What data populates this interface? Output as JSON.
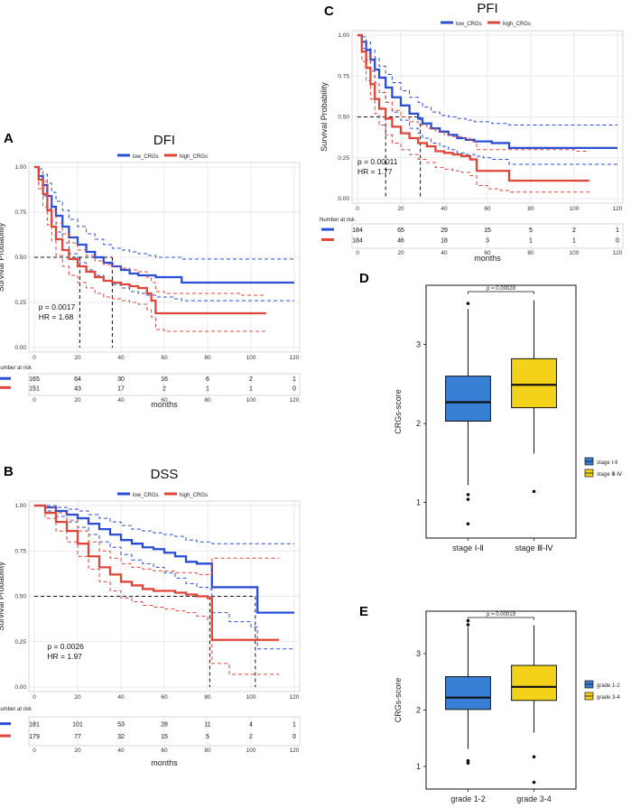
{
  "panels": {
    "A": {
      "label": "A",
      "chart_data": {
        "type": "line",
        "title": "DFI",
        "legend": [
          "low_CRGs",
          "high_CRGs"
        ],
        "ylabel": "Survival Probability",
        "xlabel": "months",
        "xticks": [
          "0",
          "20",
          "40",
          "60",
          "80",
          "100",
          "120"
        ],
        "yticks": [
          "0.00",
          "0.25",
          "0.50",
          "0.75",
          "1.00"
        ],
        "xlim": [
          0,
          120
        ],
        "ylim": [
          0,
          1
        ],
        "series": [
          {
            "name": "low_CRGs",
            "color": "#2a4fd6",
            "x": [
              0,
              2,
              4,
              6,
              8,
              10,
              13,
              16,
              20,
              24,
              28,
              32,
              36,
              40,
              44,
              48,
              52,
              56,
              60,
              64,
              68,
              120
            ],
            "y": [
              1,
              0.95,
              0.9,
              0.84,
              0.78,
              0.73,
              0.67,
              0.61,
              0.57,
              0.53,
              0.5,
              0.47,
              0.45,
              0.43,
              0.41,
              0.4,
              0.4,
              0.39,
              0.39,
              0.39,
              0.36,
              0.36
            ],
            "upper": [
              1,
              0.99,
              0.96,
              0.91,
              0.86,
              0.81,
              0.76,
              0.71,
              0.67,
              0.63,
              0.6,
              0.57,
              0.55,
              0.54,
              0.53,
              0.52,
              0.51,
              0.5,
              0.5,
              0.5,
              0.49,
              0.49
            ],
            "lower": [
              1,
              0.9,
              0.84,
              0.77,
              0.7,
              0.64,
              0.58,
              0.52,
              0.47,
              0.43,
              0.4,
              0.37,
              0.35,
              0.33,
              0.31,
              0.3,
              0.29,
              0.28,
              0.28,
              0.27,
              0.26,
              0.26
            ]
          },
          {
            "name": "high_CRGs",
            "color": "#e0453a",
            "x": [
              0,
              2,
              4,
              6,
              8,
              10,
              13,
              16,
              20,
              24,
              28,
              32,
              36,
              40,
              44,
              48,
              52,
              54,
              56,
              60,
              70,
              80,
              95,
              107
            ],
            "y": [
              1,
              0.93,
              0.85,
              0.76,
              0.67,
              0.6,
              0.54,
              0.49,
              0.45,
              0.42,
              0.39,
              0.37,
              0.36,
              0.35,
              0.34,
              0.33,
              0.3,
              0.26,
              0.19,
              0.19,
              0.19,
              0.19,
              0.19,
              0.19
            ],
            "upper": [
              1,
              0.98,
              0.92,
              0.84,
              0.76,
              0.69,
              0.63,
              0.58,
              0.54,
              0.51,
              0.48,
              0.46,
              0.45,
              0.44,
              0.43,
              0.42,
              0.39,
              0.36,
              0.31,
              0.3,
              0.3,
              0.3,
              0.29,
              0.29
            ],
            "lower": [
              1,
              0.88,
              0.78,
              0.68,
              0.59,
              0.51,
              0.45,
              0.4,
              0.36,
              0.33,
              0.3,
              0.28,
              0.27,
              0.26,
              0.25,
              0.24,
              0.21,
              0.17,
              0.1,
              0.09,
              0.09,
              0.09,
              0.09,
              0.09
            ]
          }
        ],
        "median_lines": [
          21,
          36
        ],
        "annotations": [
          "p = 0.0017",
          "HR = 1.68"
        ],
        "risk_table": {
          "title": "Number at risk",
          "low_CRGs": [
            "165",
            "64",
            "30",
            "16",
            "6",
            "2",
            "1"
          ],
          "high_CRGs": [
            "151",
            "43",
            "17",
            "2",
            "1",
            "1",
            "0"
          ]
        }
      }
    },
    "B": {
      "label": "B",
      "chart_data": {
        "type": "line",
        "title": "DSS",
        "legend": [
          "low_CRGs",
          "high_CRGs"
        ],
        "ylabel": "Survival Probability",
        "xlabel": "months",
        "xticks": [
          "0",
          "20",
          "40",
          "60",
          "80",
          "100",
          "120"
        ],
        "yticks": [
          "0.00",
          "0.25",
          "0.50",
          "0.75",
          "1.00"
        ],
        "xlim": [
          0,
          120
        ],
        "ylim": [
          0,
          1
        ],
        "series": [
          {
            "name": "low_CRGs",
            "color": "#2a4fd6",
            "x": [
              0,
              5,
              10,
              15,
              20,
              25,
              30,
              35,
              40,
              45,
              50,
              55,
              60,
              65,
              70,
              75,
              80,
              82,
              90,
              100,
              103,
              120
            ],
            "y": [
              1,
              0.99,
              0.97,
              0.95,
              0.93,
              0.9,
              0.87,
              0.84,
              0.81,
              0.79,
              0.77,
              0.76,
              0.74,
              0.72,
              0.69,
              0.68,
              0.68,
              0.55,
              0.55,
              0.55,
              0.41,
              0.41
            ],
            "upper": [
              1,
              1,
              0.99,
              0.98,
              0.97,
              0.95,
              0.93,
              0.91,
              0.89,
              0.87,
              0.86,
              0.85,
              0.84,
              0.83,
              0.81,
              0.8,
              0.8,
              0.79,
              0.79,
              0.79,
              0.79,
              0.79
            ],
            "lower": [
              1,
              0.97,
              0.94,
              0.91,
              0.88,
              0.84,
              0.8,
              0.77,
              0.73,
              0.7,
              0.68,
              0.66,
              0.63,
              0.6,
              0.57,
              0.55,
              0.54,
              0.41,
              0.36,
              0.33,
              0.21,
              0.21
            ]
          },
          {
            "name": "high_CRGs",
            "color": "#e0453a",
            "x": [
              0,
              5,
              10,
              15,
              20,
              25,
              30,
              35,
              40,
              45,
              50,
              55,
              60,
              65,
              70,
              75,
              80,
              82,
              90,
              105,
              113
            ],
            "y": [
              1,
              0.96,
              0.91,
              0.86,
              0.79,
              0.72,
              0.66,
              0.62,
              0.58,
              0.56,
              0.54,
              0.53,
              0.53,
              0.52,
              0.51,
              0.5,
              0.49,
              0.26,
              0.26,
              0.26,
              0.26
            ],
            "upper": [
              1,
              0.99,
              0.96,
              0.92,
              0.86,
              0.8,
              0.75,
              0.71,
              0.68,
              0.66,
              0.65,
              0.64,
              0.64,
              0.63,
              0.63,
              0.62,
              0.62,
              0.71,
              0.71,
              0.71,
              0.71
            ],
            "lower": [
              1,
              0.93,
              0.86,
              0.8,
              0.72,
              0.65,
              0.58,
              0.53,
              0.49,
              0.47,
              0.45,
              0.44,
              0.43,
              0.42,
              0.41,
              0.39,
              0.37,
              0.13,
              0.07,
              0.07,
              0.07
            ]
          }
        ],
        "median_lines": [
          81,
          102
        ],
        "annotations": [
          "p = 0.0026",
          "HR = 1.97"
        ],
        "risk_table": {
          "title": "Number at risk",
          "low_CRGs": [
            "181",
            "101",
            "53",
            "28",
            "11",
            "4",
            "1"
          ],
          "high_CRGs": [
            "179",
            "77",
            "32",
            "15",
            "5",
            "2",
            "0"
          ]
        }
      }
    },
    "C": {
      "label": "C",
      "chart_data": {
        "type": "line",
        "title": "PFI",
        "legend": [
          "low_CRGs",
          "high_CRGs"
        ],
        "ylabel": "Survival Probability",
        "xlabel": "months",
        "xticks": [
          "0",
          "20",
          "40",
          "60",
          "80",
          "100",
          "120"
        ],
        "yticks": [
          "0.00",
          "0.25",
          "0.50",
          "0.75",
          "1.00"
        ],
        "xlim": [
          0,
          120
        ],
        "ylim": [
          0,
          1
        ],
        "series": [
          {
            "name": "low_CRGs",
            "color": "#2a4fd6",
            "x": [
              0,
              2,
              4,
              6,
              8,
              10,
              13,
              16,
              20,
              24,
              28,
              30,
              34,
              38,
              42,
              46,
              50,
              54,
              58,
              62,
              66,
              70,
              120
            ],
            "y": [
              1,
              0.96,
              0.91,
              0.85,
              0.79,
              0.74,
              0.68,
              0.62,
              0.57,
              0.52,
              0.49,
              0.46,
              0.43,
              0.41,
              0.39,
              0.37,
              0.36,
              0.35,
              0.35,
              0.34,
              0.34,
              0.31,
              0.31
            ],
            "upper": [
              1,
              0.99,
              0.96,
              0.91,
              0.86,
              0.81,
              0.76,
              0.71,
              0.66,
              0.62,
              0.59,
              0.56,
              0.53,
              0.51,
              0.5,
              0.49,
              0.48,
              0.47,
              0.47,
              0.46,
              0.46,
              0.45,
              0.45
            ],
            "lower": [
              1,
              0.92,
              0.85,
              0.78,
              0.71,
              0.65,
              0.59,
              0.53,
              0.48,
              0.43,
              0.4,
              0.37,
              0.34,
              0.32,
              0.3,
              0.28,
              0.27,
              0.26,
              0.25,
              0.24,
              0.24,
              0.21,
              0.21
            ]
          },
          {
            "name": "high_CRGs",
            "color": "#e0453a",
            "x": [
              0,
              2,
              4,
              6,
              8,
              10,
              13,
              16,
              20,
              24,
              28,
              32,
              36,
              40,
              44,
              48,
              52,
              55,
              60,
              66,
              70,
              80,
              100,
              107
            ],
            "y": [
              1,
              0.9,
              0.8,
              0.7,
              0.61,
              0.55,
              0.49,
              0.44,
              0.4,
              0.37,
              0.34,
              0.32,
              0.29,
              0.28,
              0.27,
              0.26,
              0.24,
              0.17,
              0.17,
              0.17,
              0.11,
              0.11,
              0.11,
              0.11
            ],
            "upper": [
              1,
              0.96,
              0.88,
              0.79,
              0.71,
              0.65,
              0.59,
              0.54,
              0.5,
              0.47,
              0.45,
              0.43,
              0.41,
              0.39,
              0.38,
              0.37,
              0.35,
              0.3,
              0.3,
              0.3,
              0.3,
              0.3,
              0.29,
              0.29
            ],
            "lower": [
              1,
              0.84,
              0.72,
              0.61,
              0.52,
              0.45,
              0.39,
              0.34,
              0.3,
              0.27,
              0.24,
              0.22,
              0.19,
              0.18,
              0.17,
              0.16,
              0.14,
              0.08,
              0.06,
              0.05,
              0.04,
              0.04,
              0.04,
              0.04
            ]
          }
        ],
        "median_lines": [
          13,
          29
        ],
        "annotations": [
          "p = 0.00011",
          "HR = 1.77"
        ],
        "risk_table": {
          "title": "Number at risk",
          "low_CRGs": [
            "184",
            "65",
            "29",
            "15",
            "5",
            "2",
            "1"
          ],
          "high_CRGs": [
            "184",
            "46",
            "18",
            "3",
            "1",
            "1",
            "0"
          ]
        }
      }
    },
    "D": {
      "label": "D",
      "chart_data": {
        "type": "box",
        "ylabel": "CRGs-score",
        "yticks": [
          "1",
          "2",
          "3"
        ],
        "ylim": [
          0.55,
          3.75
        ],
        "pvalue": "p = 0.00028",
        "groups": [
          {
            "name": "stage Ⅰ-Ⅱ",
            "color": "#3a7fd6",
            "q1": 2.03,
            "median": 2.27,
            "q3": 2.6,
            "lo": 1.22,
            "hi": 3.45,
            "outliers": [
              3.52,
              1.1,
              1.04,
              0.73
            ]
          },
          {
            "name": "stage Ⅲ-Ⅳ",
            "color": "#f5d21a",
            "q1": 2.2,
            "median": 2.49,
            "q3": 2.82,
            "lo": 1.62,
            "hi": 3.56,
            "outliers": [
              1.14
            ]
          }
        ],
        "legend": [
          "stage Ⅰ-Ⅱ",
          "stage Ⅲ-Ⅳ"
        ]
      }
    },
    "E": {
      "label": "E",
      "chart_data": {
        "type": "box",
        "ylabel": "CRGs-score",
        "yticks": [
          "1",
          "2",
          "3"
        ],
        "ylim": [
          0.6,
          3.75
        ],
        "pvalue": "p = 0.00019",
        "groups": [
          {
            "name": "grade 1-2",
            "color": "#3a7fd6",
            "q1": 2.01,
            "median": 2.22,
            "q3": 2.59,
            "lo": 1.31,
            "hi": 3.47,
            "outliers": [
              3.58,
              3.51,
              1.1,
              1.06
            ]
          },
          {
            "name": "grade 3-4",
            "color": "#f5d21a",
            "q1": 2.17,
            "median": 2.41,
            "q3": 2.79,
            "lo": 1.6,
            "hi": 3.5,
            "outliers": [
              1.17,
              0.72
            ]
          }
        ],
        "legend": [
          "grade 1-2",
          "grade 3-4"
        ]
      }
    }
  }
}
